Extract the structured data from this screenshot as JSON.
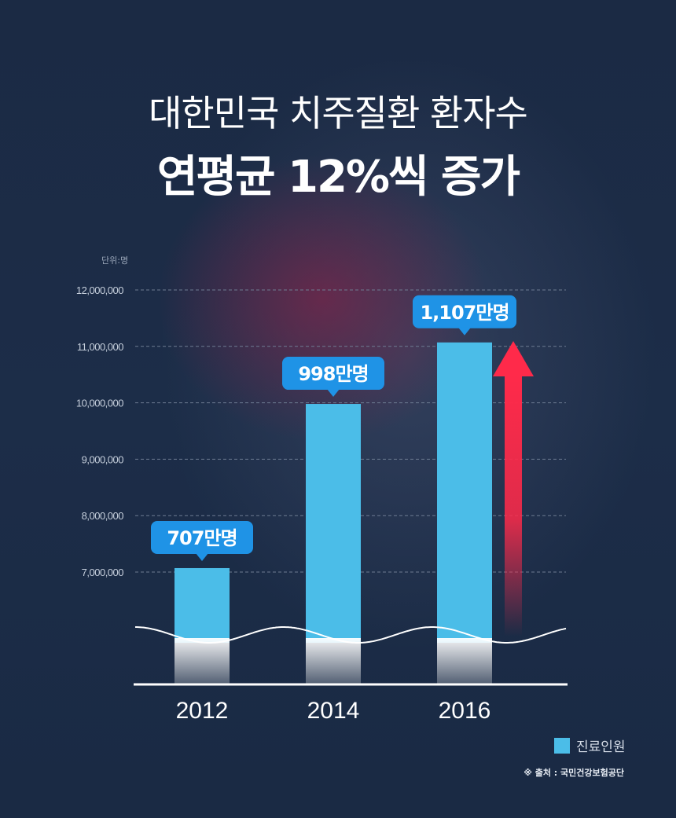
{
  "title_line1": "대한민국 치주질환 환자수",
  "title_line2": "연평균 12%씩 증가",
  "unit_label": "단위:명",
  "legend_label": "진료인원",
  "source": "※ 출처 : 국민건강보험공단",
  "colors": {
    "bar": "#4bbde8",
    "callout": "#1f93e6",
    "arrow": "#ff2a4a",
    "grid": "#6e7c92"
  },
  "chart_data": {
    "type": "bar",
    "categories": [
      "2012",
      "2014",
      "2016"
    ],
    "series": [
      {
        "name": "진료인원",
        "values": [
          7070000,
          9980000,
          11070000
        ]
      }
    ],
    "data_labels": [
      "707만명",
      "998만명",
      "1,107만명"
    ],
    "yticks": [
      {
        "value": 7000000,
        "label": "7,000,000"
      },
      {
        "value": 8000000,
        "label": "8,000,000"
      },
      {
        "value": 9000000,
        "label": "9,000,000"
      },
      {
        "value": 10000000,
        "label": "10,000,000"
      },
      {
        "value": 11000000,
        "label": "11,000,000"
      },
      {
        "value": 12000000,
        "label": "12,000,000"
      }
    ],
    "ylim": [
      7000000,
      12000000
    ],
    "y_axis_break": true,
    "grid": true,
    "legend_position": "bottom-right",
    "trend_arrow": "up"
  }
}
